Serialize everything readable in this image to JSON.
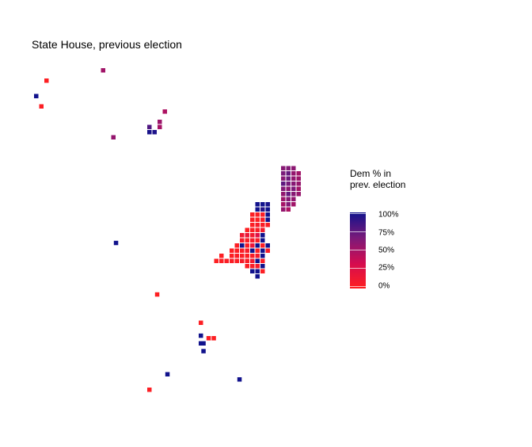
{
  "title": "State House, previous election",
  "legend": {
    "title_line1": "Dem % in",
    "title_line2": "prev. election",
    "ticks": [
      "100%",
      "75%",
      "50%",
      "25%",
      "0%"
    ],
    "colors": [
      "#11128c",
      "#7a1a7a",
      "#d40c50",
      "#ff2020"
    ]
  },
  "map_data": {
    "kind": "hexbin-style district tile map",
    "value": "Dem % in prev. election",
    "districts": [
      {
        "col": 15,
        "row": 4,
        "dem_pct": 60
      },
      {
        "col": 4,
        "row": 6,
        "dem_pct": 2
      },
      {
        "col": 2,
        "row": 9,
        "dem_pct": 100
      },
      {
        "col": 3,
        "row": 11,
        "dem_pct": 3
      },
      {
        "col": 27,
        "row": 12,
        "dem_pct": 55
      },
      {
        "col": 26,
        "row": 14,
        "dem_pct": 62
      },
      {
        "col": 24,
        "row": 15,
        "dem_pct": 85
      },
      {
        "col": 26,
        "row": 15,
        "dem_pct": 58
      },
      {
        "col": 24,
        "row": 16,
        "dem_pct": 98
      },
      {
        "col": 25,
        "row": 16,
        "dem_pct": 97
      },
      {
        "col": 17,
        "row": 17,
        "dem_pct": 65
      }
    ]
  }
}
